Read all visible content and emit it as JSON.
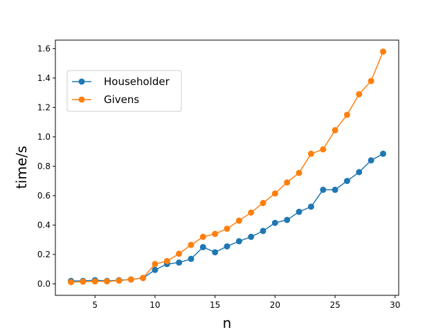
{
  "chart_data": {
    "type": "line",
    "title": "",
    "xlabel": "n",
    "ylabel": "time/s",
    "xlim": [
      1.7,
      30.3
    ],
    "ylim": [
      -0.078,
      1.658
    ],
    "xticks": [
      5,
      10,
      15,
      20,
      25,
      30
    ],
    "yticks": [
      0.0,
      0.2,
      0.4,
      0.6,
      0.8,
      1.0,
      1.2,
      1.4,
      1.6
    ],
    "xtick_labels": [
      "5",
      "10",
      "15",
      "20",
      "25",
      "30"
    ],
    "ytick_labels": [
      "0.0",
      "0.2",
      "0.4",
      "0.6",
      "0.8",
      "1.0",
      "1.2",
      "1.4",
      "1.6"
    ],
    "grid": false,
    "legend": "upper-left",
    "x": [
      3,
      4,
      5,
      6,
      7,
      8,
      9,
      10,
      11,
      12,
      13,
      14,
      15,
      16,
      17,
      18,
      19,
      20,
      21,
      22,
      23,
      24,
      25,
      26,
      27,
      28,
      29
    ],
    "series": [
      {
        "name": "Householder",
        "color": "#1f77b4",
        "marker": "circle",
        "values": [
          0.02,
          0.02,
          0.025,
          0.02,
          0.025,
          0.03,
          0.04,
          0.095,
          0.135,
          0.145,
          0.17,
          0.25,
          0.215,
          0.255,
          0.29,
          0.32,
          0.36,
          0.415,
          0.435,
          0.49,
          0.525,
          0.64,
          0.64,
          0.7,
          0.76,
          0.84,
          0.885
        ]
      },
      {
        "name": "Givens",
        "color": "#ff7f0e",
        "marker": "circle",
        "values": [
          0.012,
          0.015,
          0.017,
          0.017,
          0.022,
          0.03,
          0.04,
          0.135,
          0.155,
          0.205,
          0.265,
          0.32,
          0.34,
          0.375,
          0.43,
          0.485,
          0.55,
          0.615,
          0.69,
          0.755,
          0.885,
          0.915,
          1.045,
          1.15,
          1.29,
          1.38,
          1.58
        ]
      }
    ]
  }
}
